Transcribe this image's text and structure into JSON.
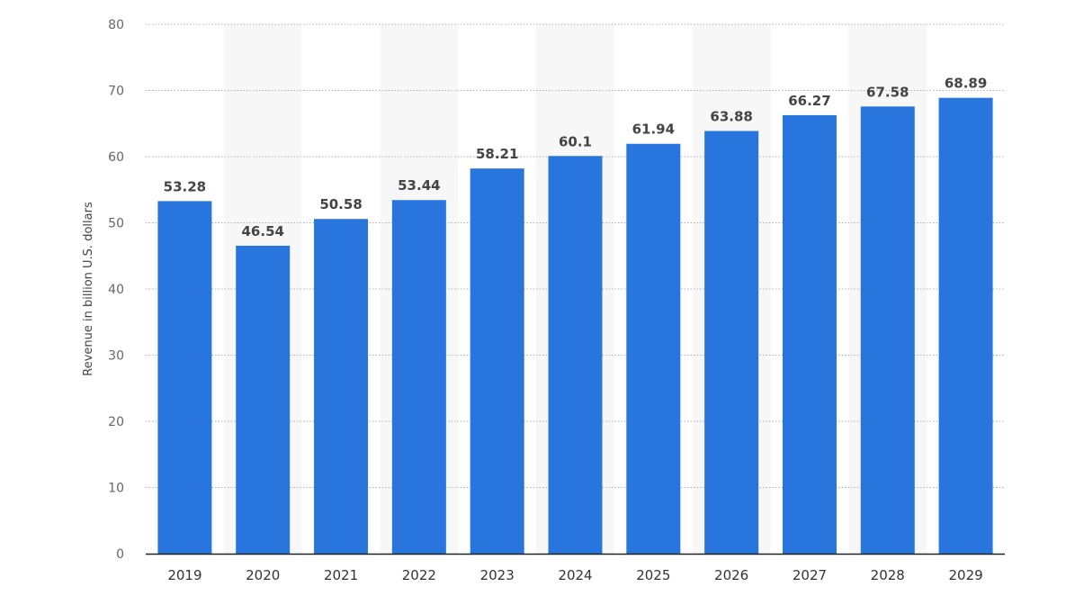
{
  "colors": {
    "bar": "#2876dd",
    "band": "#f7f7f7",
    "grid": "#b0b0b0",
    "axis": "#222222"
  },
  "chart_data": {
    "type": "bar",
    "categories": [
      "2019",
      "2020",
      "2021",
      "2022",
      "2023",
      "2024",
      "2025",
      "2026",
      "2027",
      "2028",
      "2029"
    ],
    "values": [
      53.28,
      46.54,
      50.58,
      53.44,
      58.21,
      60.1,
      61.94,
      63.88,
      66.27,
      67.58,
      68.89
    ],
    "value_labels": [
      "53.28",
      "46.54",
      "50.58",
      "53.44",
      "58.21",
      "60.1",
      "61.94",
      "63.88",
      "66.27",
      "67.58",
      "68.89"
    ],
    "title": "",
    "xlabel": "",
    "ylabel": "Revenue in billion U.S. dollars",
    "ylim": [
      0,
      80
    ],
    "yticks": [
      0,
      10,
      20,
      30,
      40,
      50,
      60,
      70,
      80
    ],
    "grid": true,
    "legend": "none"
  }
}
